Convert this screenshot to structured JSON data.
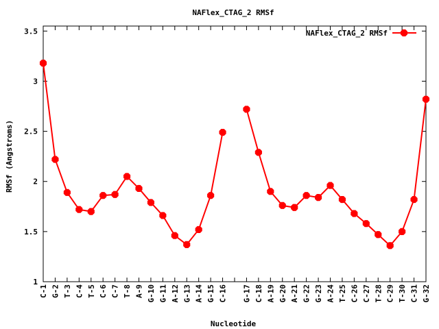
{
  "chart_data": {
    "type": "line",
    "title": "NAFlex_CTAG_2 RMSf",
    "xlabel": "Nucleotide",
    "ylabel": "RMSf (Angstroms)",
    "ylim": [
      1,
      3.55
    ],
    "yticks": [
      1,
      1.5,
      2,
      2.5,
      3,
      3.5
    ],
    "ytick_labels": [
      "1",
      "1.5",
      "2",
      "2.5",
      "3",
      "3.5"
    ],
    "legend_position": "top-right",
    "grid": false,
    "series": [
      {
        "name": "NAFlex_CTAG_2 RMSf",
        "color": "#ff0000",
        "points": [
          {
            "label": "C-1",
            "value": 3.18
          },
          {
            "label": "G-2",
            "value": 2.22
          },
          {
            "label": "T-3",
            "value": 1.89
          },
          {
            "label": "C-4",
            "value": 1.72
          },
          {
            "label": "T-5",
            "value": 1.7
          },
          {
            "label": "C-6",
            "value": 1.86
          },
          {
            "label": "C-7",
            "value": 1.87
          },
          {
            "label": "T-8",
            "value": 2.05
          },
          {
            "label": "A-9",
            "value": 1.93
          },
          {
            "label": "G-10",
            "value": 1.79
          },
          {
            "label": "G-11",
            "value": 1.66
          },
          {
            "label": "A-12",
            "value": 1.46
          },
          {
            "label": "G-13",
            "value": 1.37
          },
          {
            "label": "A-14",
            "value": 1.52
          },
          {
            "label": "G-15",
            "value": 1.86
          },
          {
            "label": "C-16",
            "value": 2.49
          },
          {
            "label": "",
            "value": null
          },
          {
            "label": "G-17",
            "value": 2.72
          },
          {
            "label": "C-18",
            "value": 2.29
          },
          {
            "label": "A-19",
            "value": 1.9
          },
          {
            "label": "G-20",
            "value": 1.76
          },
          {
            "label": "A-21",
            "value": 1.74
          },
          {
            "label": "G-22",
            "value": 1.86
          },
          {
            "label": "G-23",
            "value": 1.84
          },
          {
            "label": "A-24",
            "value": 1.96
          },
          {
            "label": "T-25",
            "value": 1.82
          },
          {
            "label": "C-26",
            "value": 1.68
          },
          {
            "label": "C-27",
            "value": 1.58
          },
          {
            "label": "T-28",
            "value": 1.47
          },
          {
            "label": "C-29",
            "value": 1.36
          },
          {
            "label": "T-30",
            "value": 1.5
          },
          {
            "label": "C-31",
            "value": 1.82
          },
          {
            "label": "G-32",
            "value": 2.82
          }
        ]
      }
    ]
  }
}
